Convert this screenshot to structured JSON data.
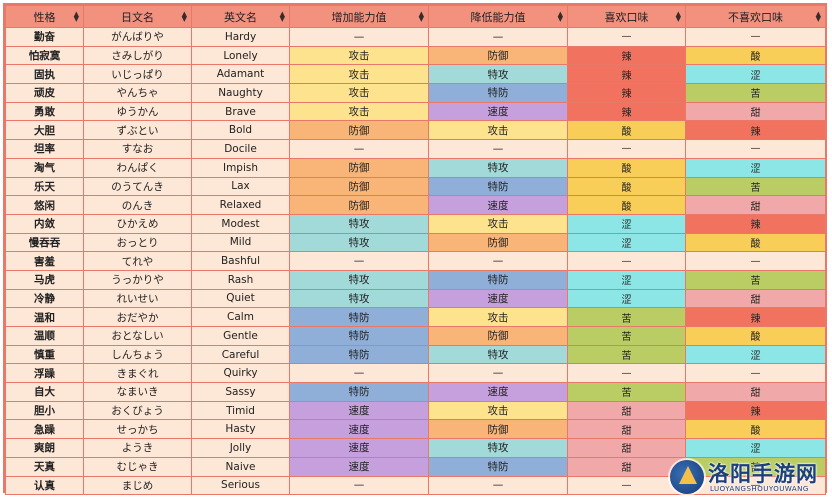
{
  "colors": {
    "header": "#f3917f",
    "border": "#e8786a",
    "base": "#fde7d6",
    "stats": {
      "攻击": "#fde38e",
      "防御": "#f9b578",
      "特攻": "#a2d9d9",
      "特防": "#8fafd8",
      "速度": "#c6a0dc",
      "—": "#fde7d6"
    },
    "flavors": {
      "辣": "#f0725f",
      "酸": "#f8cd58",
      "涩": "#8de6e6",
      "苦": "#b9cd64",
      "甜": "#f0a8a8",
      "—": "#fde7d6"
    }
  },
  "headers": [
    "性格",
    "日文名",
    "英文名",
    "增加能力值",
    "降低能力值",
    "喜欢口味",
    "不喜欢口味"
  ],
  "rows": [
    [
      "勤奋",
      "がんばりや",
      "Hardy",
      "—",
      "—",
      "—",
      "—"
    ],
    [
      "怕寂寞",
      "さみしがり",
      "Lonely",
      "攻击",
      "防御",
      "辣",
      "酸"
    ],
    [
      "固执",
      "いじっぱり",
      "Adamant",
      "攻击",
      "特攻",
      "辣",
      "涩"
    ],
    [
      "顽皮",
      "やんちゃ",
      "Naughty",
      "攻击",
      "特防",
      "辣",
      "苦"
    ],
    [
      "勇敢",
      "ゆうかん",
      "Brave",
      "攻击",
      "速度",
      "辣",
      "甜"
    ],
    [
      "大胆",
      "ずぶとい",
      "Bold",
      "防御",
      "攻击",
      "酸",
      "辣"
    ],
    [
      "坦率",
      "すなお",
      "Docile",
      "—",
      "—",
      "—",
      "—"
    ],
    [
      "淘气",
      "わんぱく",
      "Impish",
      "防御",
      "特攻",
      "酸",
      "涩"
    ],
    [
      "乐天",
      "のうてんき",
      "Lax",
      "防御",
      "特防",
      "酸",
      "苦"
    ],
    [
      "悠闲",
      "のんき",
      "Relaxed",
      "防御",
      "速度",
      "酸",
      "甜"
    ],
    [
      "内敛",
      "ひかえめ",
      "Modest",
      "特攻",
      "攻击",
      "涩",
      "辣"
    ],
    [
      "慢吞吞",
      "おっとり",
      "Mild",
      "特攻",
      "防御",
      "涩",
      "酸"
    ],
    [
      "害羞",
      "てれや",
      "Bashful",
      "—",
      "—",
      "—",
      "—"
    ],
    [
      "马虎",
      "うっかりや",
      "Rash",
      "特攻",
      "特防",
      "涩",
      "苦"
    ],
    [
      "冷静",
      "れいせい",
      "Quiet",
      "特攻",
      "速度",
      "涩",
      "甜"
    ],
    [
      "温和",
      "おだやか",
      "Calm",
      "特防",
      "攻击",
      "苦",
      "辣"
    ],
    [
      "温顺",
      "おとなしい",
      "Gentle",
      "特防",
      "防御",
      "苦",
      "酸"
    ],
    [
      "慎重",
      "しんちょう",
      "Careful",
      "特防",
      "特攻",
      "苦",
      "涩"
    ],
    [
      "浮躁",
      "きまぐれ",
      "Quirky",
      "—",
      "—",
      "—",
      "—"
    ],
    [
      "自大",
      "なまいき",
      "Sassy",
      "特防",
      "速度",
      "苦",
      "甜"
    ],
    [
      "胆小",
      "おくびょう",
      "Timid",
      "速度",
      "攻击",
      "甜",
      "辣"
    ],
    [
      "急躁",
      "せっかち",
      "Hasty",
      "速度",
      "防御",
      "甜",
      "酸"
    ],
    [
      "爽朗",
      "ようき",
      "Jolly",
      "速度",
      "特攻",
      "甜",
      "涩"
    ],
    [
      "天真",
      "むじゃき",
      "Naive",
      "速度",
      "特防",
      "甜",
      "苦"
    ],
    [
      "认真",
      "まじめ",
      "Serious",
      "—",
      "—",
      "—",
      "—"
    ]
  ],
  "watermark": {
    "title": "洛阳手游网",
    "subtitle": "LUOYANGSHOUYOUWANG"
  }
}
